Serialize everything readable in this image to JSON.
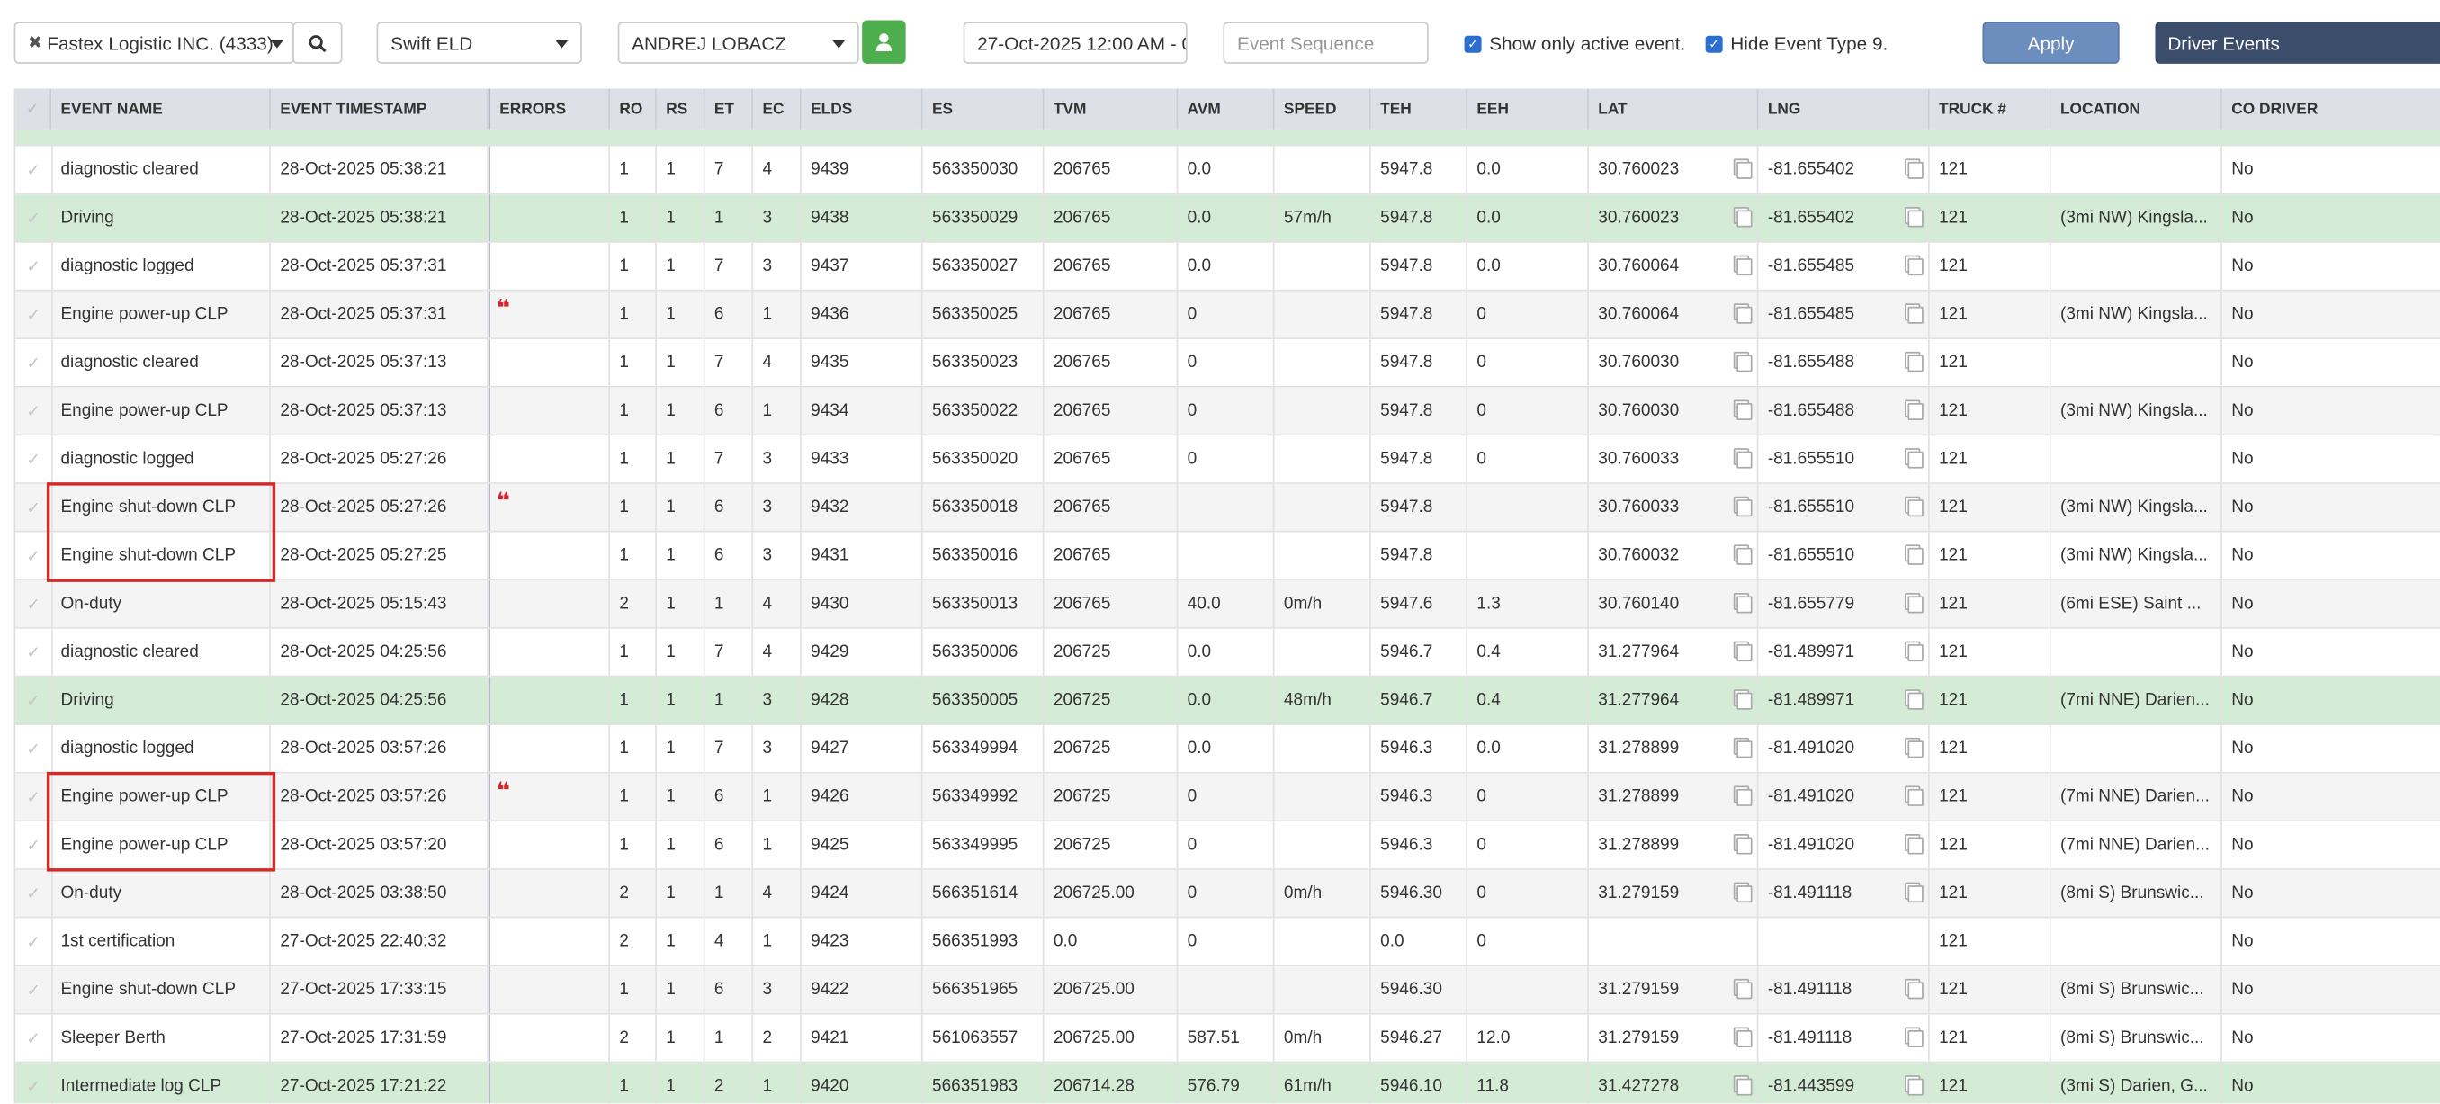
{
  "toolbar": {
    "company": "Fastex Logistic INC. (4333)",
    "eld": "Swift ELD",
    "driver": "ANDREJ LOBACZ",
    "date_range": "27-Oct-2025 12:00 AM - 0",
    "event_sequence_placeholder": "Event Sequence",
    "show_active": "Show only active event.",
    "hide_type9": "Hide Event Type 9.",
    "apply": "Apply",
    "view": "Driver Events"
  },
  "table": {
    "columns": [
      "EVENT NAME",
      "EVENT TIMESTAMP",
      "ERRORS",
      "RO",
      "RS",
      "ET",
      "EC",
      "ELDS",
      "ES",
      "TVM",
      "AVM",
      "SPEED",
      "TEH",
      "EEH",
      "LAT",
      "LNG",
      "TRUCK #",
      "LOCATION",
      "CO DRIVER"
    ],
    "rows": [
      [
        "diagnostic cleared",
        "28-Oct-2025 05:38:21",
        null,
        "1",
        "1",
        "7",
        "4",
        "9439",
        "563350030",
        "206765",
        "0.0",
        null,
        "5947.8",
        "0.0",
        "30.760023",
        "-81.655402",
        "121",
        null,
        "No"
      ],
      [
        "Driving",
        "28-Oct-2025 05:38:21",
        null,
        "1",
        "1",
        "1",
        "3",
        "9438",
        "563350029",
        "206765",
        "0.0",
        "57m/h",
        "5947.8",
        "0.0",
        "30.760023",
        "-81.655402",
        "121",
        "(3mi NW) Kingsla...",
        "No"
      ],
      [
        "diagnostic logged",
        "28-Oct-2025 05:37:31",
        null,
        "1",
        "1",
        "7",
        "3",
        "9437",
        "563350027",
        "206765",
        "0.0",
        null,
        "5947.8",
        "0.0",
        "30.760064",
        "-81.655485",
        "121",
        null,
        "No"
      ],
      [
        "Engine power-up CLP",
        "28-Oct-2025 05:37:31",
        "❝",
        "1",
        "1",
        "6",
        "1",
        "9436",
        "563350025",
        "206765",
        "0",
        null,
        "5947.8",
        "0",
        "30.760064",
        "-81.655485",
        "121",
        "(3mi NW) Kingsla...",
        "No"
      ],
      [
        "diagnostic cleared",
        "28-Oct-2025 05:37:13",
        null,
        "1",
        "1",
        "7",
        "4",
        "9435",
        "563350023",
        "206765",
        "0",
        null,
        "5947.8",
        "0",
        "30.760030",
        "-81.655488",
        "121",
        null,
        "No"
      ],
      [
        "Engine power-up CLP",
        "28-Oct-2025 05:37:13",
        null,
        "1",
        "1",
        "6",
        "1",
        "9434",
        "563350022",
        "206765",
        "0",
        null,
        "5947.8",
        "0",
        "30.760030",
        "-81.655488",
        "121",
        "(3mi NW) Kingsla...",
        "No"
      ],
      [
        "diagnostic logged",
        "28-Oct-2025 05:27:26",
        null,
        "1",
        "1",
        "7",
        "3",
        "9433",
        "563350020",
        "206765",
        "0",
        null,
        "5947.8",
        "0",
        "30.760033",
        "-81.655510",
        "121",
        null,
        "No"
      ],
      [
        "Engine shut-down CLP",
        "28-Oct-2025 05:27:26",
        "❝",
        "1",
        "1",
        "6",
        "3",
        "9432",
        "563350018",
        "206765",
        null,
        null,
        "5947.8",
        null,
        "30.760033",
        "-81.655510",
        "121",
        "(3mi NW) Kingsla...",
        "No"
      ],
      [
        "Engine shut-down CLP",
        "28-Oct-2025 05:27:25",
        null,
        "1",
        "1",
        "6",
        "3",
        "9431",
        "563350016",
        "206765",
        null,
        null,
        "5947.8",
        null,
        "30.760032",
        "-81.655510",
        "121",
        "(3mi NW) Kingsla...",
        "No"
      ],
      [
        "On-duty",
        "28-Oct-2025 05:15:43",
        null,
        "2",
        "1",
        "1",
        "4",
        "9430",
        "563350013",
        "206765",
        "40.0",
        "0m/h",
        "5947.6",
        "1.3",
        "30.760140",
        "-81.655779",
        "121",
        "(6mi ESE) Saint ...",
        "No"
      ],
      [
        "diagnostic cleared",
        "28-Oct-2025 04:25:56",
        null,
        "1",
        "1",
        "7",
        "4",
        "9429",
        "563350006",
        "206725",
        "0.0",
        null,
        "5946.7",
        "0.4",
        "31.277964",
        "-81.489971",
        "121",
        null,
        "No"
      ],
      [
        "Driving",
        "28-Oct-2025 04:25:56",
        null,
        "1",
        "1",
        "1",
        "3",
        "9428",
        "563350005",
        "206725",
        "0.0",
        "48m/h",
        "5946.7",
        "0.4",
        "31.277964",
        "-81.489971",
        "121",
        "(7mi NNE) Darien...",
        "No"
      ],
      [
        "diagnostic logged",
        "28-Oct-2025 03:57:26",
        null,
        "1",
        "1",
        "7",
        "3",
        "9427",
        "563349994",
        "206725",
        "0.0",
        null,
        "5946.3",
        "0.0",
        "31.278899",
        "-81.491020",
        "121",
        null,
        "No"
      ],
      [
        "Engine power-up CLP",
        "28-Oct-2025 03:57:26",
        "❝",
        "1",
        "1",
        "6",
        "1",
        "9426",
        "563349992",
        "206725",
        "0",
        null,
        "5946.3",
        "0",
        "31.278899",
        "-81.491020",
        "121",
        "(7mi NNE) Darien...",
        "No"
      ],
      [
        "Engine power-up CLP",
        "28-Oct-2025 03:57:20",
        null,
        "1",
        "1",
        "6",
        "1",
        "9425",
        "563349995",
        "206725",
        "0",
        null,
        "5946.3",
        "0",
        "31.278899",
        "-81.491020",
        "121",
        "(7mi NNE) Darien...",
        "No"
      ],
      [
        "On-duty",
        "28-Oct-2025 03:38:50",
        null,
        "2",
        "1",
        "1",
        "4",
        "9424",
        "566351614",
        "206725.00",
        "0",
        "0m/h",
        "5946.30",
        "0",
        "31.279159",
        "-81.491118",
        "121",
        "(8mi S) Brunswic...",
        "No"
      ],
      [
        "1st certification",
        "27-Oct-2025 22:40:32",
        null,
        "2",
        "1",
        "4",
        "1",
        "9423",
        "566351993",
        "0.0",
        "0",
        null,
        "0.0",
        "0",
        null,
        null,
        "121",
        null,
        "No"
      ],
      [
        "Engine shut-down CLP",
        "27-Oct-2025 17:33:15",
        null,
        "1",
        "1",
        "6",
        "3",
        "9422",
        "566351965",
        "206725.00",
        null,
        null,
        "5946.30",
        null,
        "31.279159",
        "-81.491118",
        "121",
        "(8mi S) Brunswic...",
        "No"
      ],
      [
        "Sleeper Berth",
        "27-Oct-2025 17:31:59",
        null,
        "2",
        "1",
        "1",
        "2",
        "9421",
        "561063557",
        "206725.00",
        "587.51",
        "0m/h",
        "5946.27",
        "12.0",
        "31.279159",
        "-81.491118",
        "121",
        "(8mi S) Brunswic...",
        "No"
      ],
      [
        "Intermediate log CLP",
        "27-Oct-2025 17:21:22",
        null,
        "1",
        "1",
        "2",
        "1",
        "9420",
        "566351983",
        "206714.28",
        "576.79",
        "61m/h",
        "5946.10",
        "11.8",
        "31.427278",
        "-81.443599",
        "121",
        "(3mi S) Darien, G...",
        "No"
      ]
    ]
  }
}
